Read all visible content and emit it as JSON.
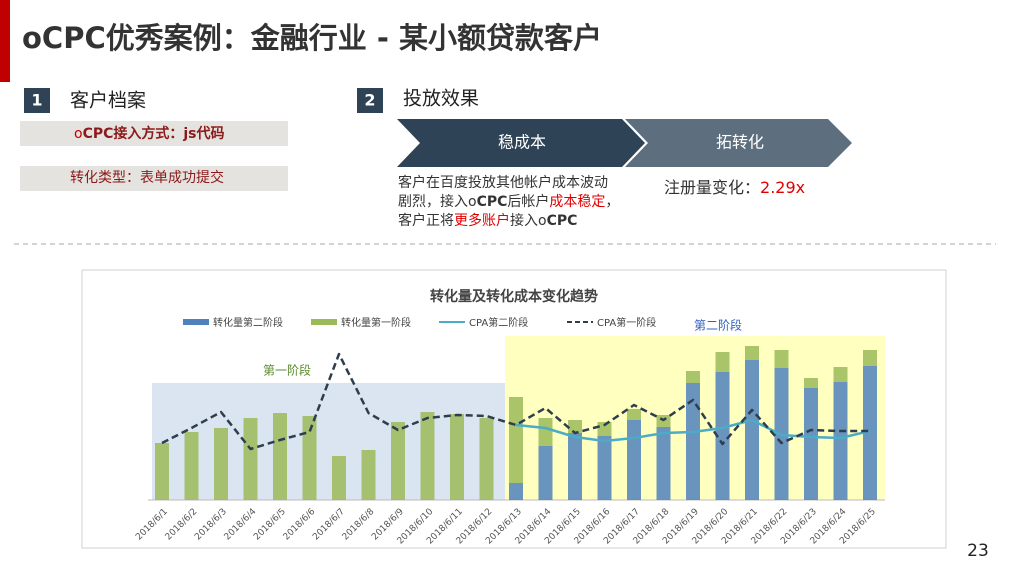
{
  "slide": {
    "title": "oCPC优秀案例：金融行业 - 某小额贷款客户",
    "page": "23",
    "section1": {
      "number": "1",
      "heading": "客户档案",
      "box1": [
        "o",
        "CPC接入方式：js代码"
      ],
      "box2": "转化类型：表单成功提交"
    },
    "section2": {
      "number": "2",
      "heading": "投放效果",
      "step1": "稳成本",
      "step2": "拓转化",
      "text": [
        [
          "客户在百度投放其他帐户成本波动"
        ],
        [
          "剧烈，接入o",
          "CPC",
          "后帐户",
          "成本稳定",
          "，"
        ],
        [
          "客户正将",
          "更多账户",
          "接入o",
          "CPC"
        ]
      ],
      "note": [
        "注册量变化：",
        "2.29x"
      ]
    }
  },
  "chart_data": {
    "type": "combo",
    "title": "转化量及转化成本变化趋势",
    "annotations": [
      "第一阶段",
      "第二阶段"
    ],
    "categories": [
      "2018/6/1",
      "2018/6/2",
      "2018/6/3",
      "2018/6/4",
      "2018/6/5",
      "2018/6/6",
      "2018/6/7",
      "2018/6/8",
      "2018/6/9",
      "2018/6/10",
      "2018/6/11",
      "2018/6/12",
      "2018/6/13",
      "2018/6/14",
      "2018/6/15",
      "2018/6/16",
      "2018/6/17",
      "2018/6/18",
      "2018/6/19",
      "2018/6/20",
      "2018/6/21",
      "2018/6/22",
      "2018/6/23",
      "2018/6/24",
      "2018/6/25"
    ],
    "ylim": [
      0,
      160
    ],
    "series": [
      {
        "name": "转化量第二阶段",
        "type": "bar",
        "color": "#4f81bd",
        "values": [
          null,
          null,
          null,
          null,
          null,
          null,
          null,
          null,
          null,
          null,
          null,
          null,
          17,
          54,
          67,
          64,
          80,
          73,
          117,
          128,
          140,
          132,
          112,
          118,
          134
        ]
      },
      {
        "name": "转化量第一阶段",
        "type": "bar",
        "color": "#9bbb59",
        "values": [
          57,
          68,
          72,
          82,
          87,
          84,
          44,
          50,
          78,
          88,
          86,
          82,
          86,
          28,
          13,
          14,
          11,
          12,
          12,
          20,
          14,
          18,
          10,
          15,
          16
        ]
      },
      {
        "name": "CPA第二阶段",
        "type": "line",
        "color": "#4bacc6",
        "values": [
          null,
          null,
          null,
          null,
          null,
          null,
          null,
          null,
          null,
          null,
          null,
          null,
          75,
          72,
          63,
          59,
          62,
          67,
          68,
          72,
          80,
          65,
          63,
          62,
          69
        ]
      },
      {
        "name": "CPA第一阶段",
        "type": "line",
        "color": "#2f3e4e",
        "dashed": true,
        "values": [
          57,
          72,
          88,
          51,
          60,
          68,
          146,
          87,
          70,
          82,
          85,
          84,
          75,
          92,
          67,
          75,
          95,
          80,
          100,
          56,
          90,
          57,
          70,
          69,
          69
        ]
      }
    ]
  }
}
